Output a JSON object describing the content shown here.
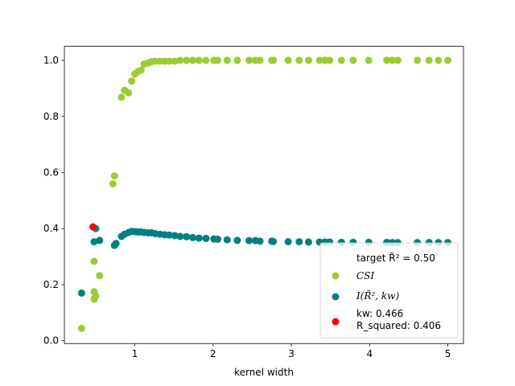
{
  "chart_data": {
    "type": "scatter",
    "xlabel": "kernel width",
    "ylabel": "",
    "xlim": [
      0.1,
      5.2
    ],
    "ylim": [
      -0.01,
      1.05
    ],
    "xticks": [
      1,
      2,
      3,
      4,
      5
    ],
    "yticks": [
      0.0,
      0.2,
      0.4,
      0.6,
      0.8,
      1.0
    ],
    "xtick_labels": [
      "1",
      "2",
      "3",
      "4",
      "5"
    ],
    "ytick_labels": [
      "0.0",
      "0.2",
      "0.4",
      "0.6",
      "0.8",
      "1.0"
    ],
    "grid": false,
    "legend_position": "lower-right",
    "legend_title": "target R̃² = 0.50",
    "series": [
      {
        "name": "CSI",
        "color": "#9acd32",
        "points": [
          [
            0.32,
            0.044
          ],
          [
            0.48,
            0.148
          ],
          [
            0.48,
            0.175
          ],
          [
            0.5,
            0.16
          ],
          [
            0.48,
            0.283
          ],
          [
            0.55,
            0.232
          ],
          [
            0.72,
            0.56
          ],
          [
            0.74,
            0.588
          ],
          [
            0.83,
            0.868
          ],
          [
            0.87,
            0.893
          ],
          [
            0.92,
            0.884
          ],
          [
            0.96,
            0.926
          ],
          [
            1.0,
            0.951
          ],
          [
            1.04,
            0.96
          ],
          [
            1.08,
            0.965
          ],
          [
            1.12,
            0.987
          ],
          [
            1.17,
            0.99
          ],
          [
            1.21,
            0.995
          ],
          [
            1.26,
            0.997
          ],
          [
            1.32,
            0.997
          ],
          [
            1.38,
            0.997
          ],
          [
            1.44,
            0.997
          ],
          [
            1.51,
            0.997
          ],
          [
            1.58,
            1.0
          ],
          [
            1.66,
            1.0
          ],
          [
            1.74,
            1.0
          ],
          [
            1.82,
            1.0
          ],
          [
            1.91,
            1.0
          ],
          [
            2.01,
            1.0
          ],
          [
            2.06,
            1.0
          ],
          [
            2.18,
            1.0
          ],
          [
            2.31,
            1.0
          ],
          [
            2.46,
            1.0
          ],
          [
            2.54,
            1.0
          ],
          [
            2.6,
            1.0
          ],
          [
            2.75,
            1.0
          ],
          [
            2.77,
            1.0
          ],
          [
            2.96,
            1.0
          ],
          [
            3.1,
            1.0
          ],
          [
            3.22,
            1.0
          ],
          [
            3.36,
            1.0
          ],
          [
            3.43,
            1.0
          ],
          [
            3.49,
            1.0
          ],
          [
            3.64,
            1.0
          ],
          [
            3.79,
            1.0
          ],
          [
            3.99,
            1.0
          ],
          [
            4.22,
            1.0
          ],
          [
            4.29,
            1.0
          ],
          [
            4.36,
            1.0
          ],
          [
            4.61,
            1.0
          ],
          [
            4.76,
            1.0
          ],
          [
            4.88,
            1.0
          ],
          [
            5.0,
            1.0
          ]
        ]
      },
      {
        "name": "I(R̃², kw)",
        "color": "#008080",
        "points": [
          [
            0.32,
            0.17
          ],
          [
            0.48,
            0.353
          ],
          [
            0.5,
            0.4
          ],
          [
            0.55,
            0.358
          ],
          [
            0.74,
            0.34
          ],
          [
            0.76,
            0.347
          ],
          [
            0.83,
            0.372
          ],
          [
            0.87,
            0.38
          ],
          [
            0.92,
            0.386
          ],
          [
            0.96,
            0.39
          ],
          [
            1.0,
            0.389
          ],
          [
            1.04,
            0.388
          ],
          [
            1.08,
            0.388
          ],
          [
            1.12,
            0.386
          ],
          [
            1.17,
            0.385
          ],
          [
            1.21,
            0.385
          ],
          [
            1.26,
            0.382
          ],
          [
            1.32,
            0.38
          ],
          [
            1.38,
            0.378
          ],
          [
            1.44,
            0.377
          ],
          [
            1.51,
            0.375
          ],
          [
            1.58,
            0.372
          ],
          [
            1.66,
            0.371
          ],
          [
            1.74,
            0.368
          ],
          [
            1.82,
            0.366
          ],
          [
            1.91,
            0.365
          ],
          [
            2.01,
            0.363
          ],
          [
            2.06,
            0.362
          ],
          [
            2.18,
            0.36
          ],
          [
            2.31,
            0.358
          ],
          [
            2.46,
            0.357
          ],
          [
            2.54,
            0.357
          ],
          [
            2.6,
            0.355
          ],
          [
            2.75,
            0.355
          ],
          [
            2.77,
            0.354
          ],
          [
            2.96,
            0.353
          ],
          [
            3.1,
            0.353
          ],
          [
            3.22,
            0.352
          ],
          [
            3.36,
            0.352
          ],
          [
            3.43,
            0.352
          ],
          [
            3.49,
            0.352
          ],
          [
            3.64,
            0.351
          ],
          [
            3.79,
            0.351
          ],
          [
            3.99,
            0.351
          ],
          [
            4.22,
            0.351
          ],
          [
            4.29,
            0.35
          ],
          [
            4.36,
            0.35
          ],
          [
            4.61,
            0.35
          ],
          [
            4.76,
            0.35
          ],
          [
            4.88,
            0.35
          ],
          [
            5.0,
            0.35
          ]
        ]
      },
      {
        "name": "kw: 0.466\nR_squared: 0.406",
        "color": "#ff0000",
        "points": [
          [
            0.466,
            0.406
          ]
        ]
      }
    ]
  }
}
